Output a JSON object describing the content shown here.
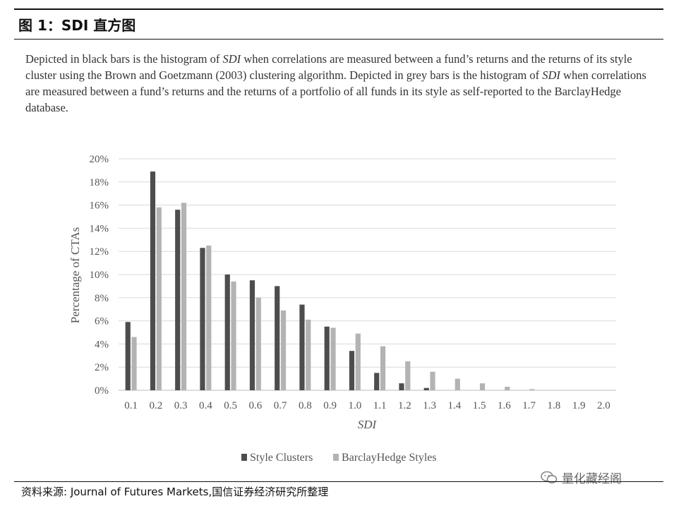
{
  "figure": {
    "title": "图 1：SDI 直方图",
    "caption_parts": [
      "Depicted in black bars is the histogram of ",
      "SDI",
      " when correlations are measured between a fund’s returns and the returns of its style cluster using the Brown and Goetzmann (2003) clustering algorithm. Depicted in grey bars is the histogram of ",
      "SDI",
      " when correlations are measured between a fund’s returns and the returns of a portfolio of all funds in its style as self-reported to the BarclayHedge database."
    ],
    "source": "资料来源: Journal of Futures Markets,国信证券经济研究所整理",
    "watermark": "量化藏经阁",
    "watermark_icon": "wechat-icon"
  },
  "chart_data": {
    "type": "bar",
    "xlabel": "SDI",
    "ylabel": "Percentage of CTAs",
    "categories": [
      "0.1",
      "0.2",
      "0.3",
      "0.4",
      "0.5",
      "0.6",
      "0.7",
      "0.8",
      "0.9",
      "1.0",
      "1.1",
      "1.2",
      "1.3",
      "1.4",
      "1.5",
      "1.6",
      "1.7",
      "1.8",
      "1.9",
      "2.0"
    ],
    "ylim": [
      0,
      20
    ],
    "yticks": [
      "0%",
      "2%",
      "4%",
      "6%",
      "8%",
      "10%",
      "12%",
      "14%",
      "16%",
      "18%",
      "20%"
    ],
    "grid": true,
    "legend_position": "bottom",
    "series": [
      {
        "name": "Style Clusters",
        "color": "#4d4d4d",
        "values": [
          5.9,
          18.9,
          15.6,
          12.3,
          10.0,
          9.5,
          9.0,
          7.4,
          5.5,
          3.4,
          1.5,
          0.6,
          0.2,
          0,
          0,
          0,
          0,
          0,
          0,
          0
        ]
      },
      {
        "name": "BarclayHedge Styles",
        "color": "#b3b3b3",
        "values": [
          4.6,
          15.8,
          16.2,
          12.5,
          9.4,
          8.0,
          6.9,
          6.1,
          5.4,
          4.9,
          3.8,
          2.5,
          1.6,
          1.0,
          0.6,
          0.3,
          0.1,
          0,
          0,
          0
        ]
      }
    ]
  }
}
